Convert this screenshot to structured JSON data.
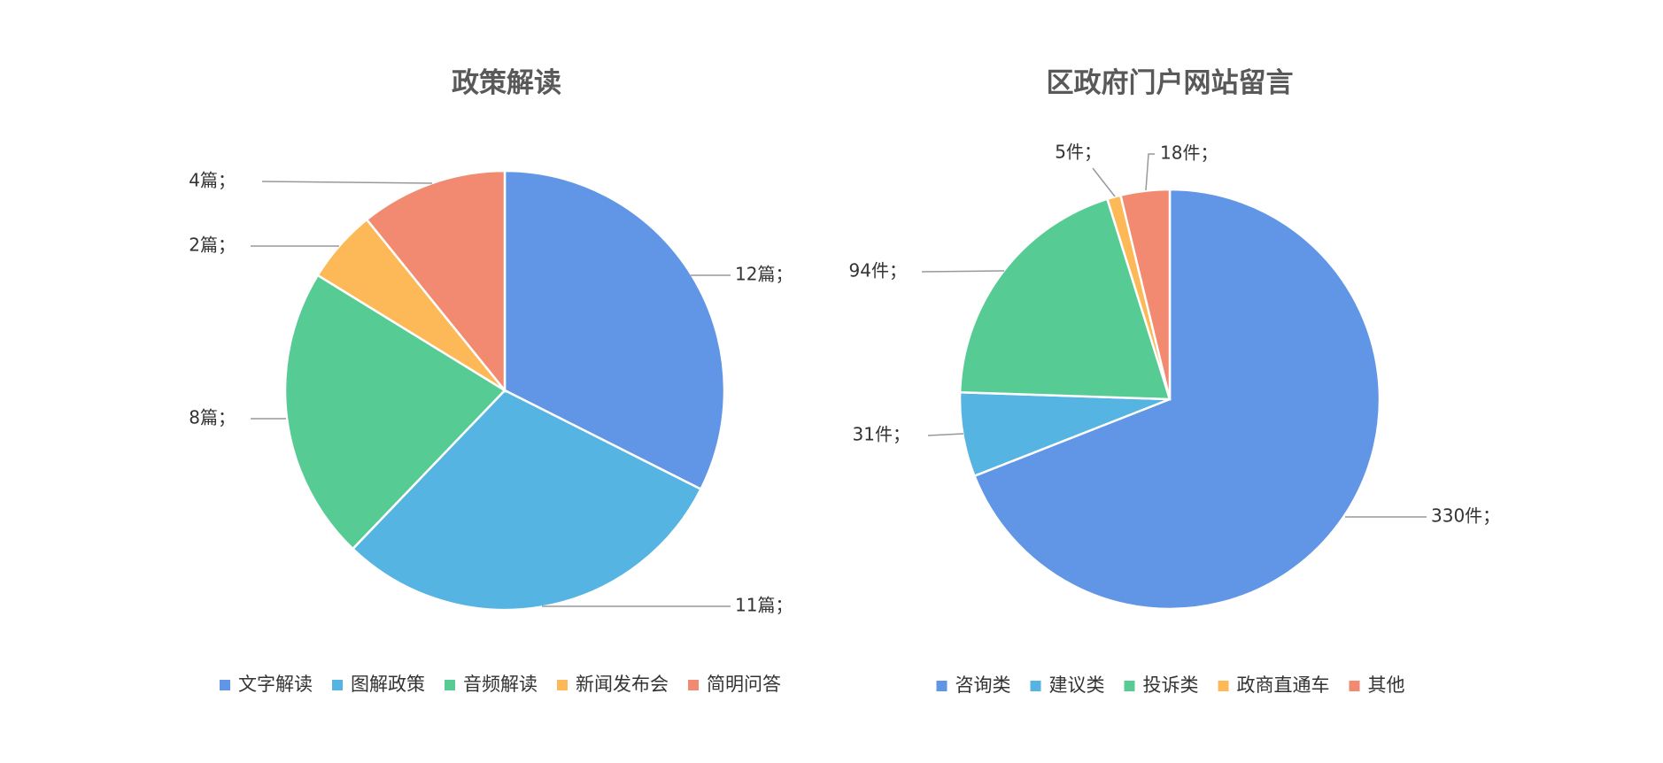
{
  "colors": {
    "blue": "#6196E6",
    "sky": "#56B4E3",
    "green": "#56CB93",
    "yellow": "#FDB857",
    "salmon": "#F28A71"
  },
  "chart_data": [
    {
      "type": "pie",
      "title": "政策解读",
      "categories": [
        "文字解读",
        "图解政策",
        "音频解读",
        "新闻发布会",
        "简明问答"
      ],
      "values": [
        12,
        11,
        8,
        2,
        4
      ],
      "data_labels": [
        "12篇；",
        "11篇；",
        "8篇；",
        "2篇；",
        "4篇；"
      ],
      "colors": [
        "#6196E6",
        "#56B4E3",
        "#56CB93",
        "#FDB857",
        "#F28A71"
      ],
      "legend_position": "bottom"
    },
    {
      "type": "pie",
      "title": "区政府门户网站留言",
      "categories": [
        "咨询类",
        "建议类",
        "投诉类",
        "政商直通车",
        "其他"
      ],
      "values": [
        330,
        31,
        94,
        5,
        18
      ],
      "data_labels": [
        "330件；",
        "31件；",
        "94件；",
        "5件；",
        "18件；"
      ],
      "colors": [
        "#6196E6",
        "#56B4E3",
        "#56CB93",
        "#FDB857",
        "#F28A71"
      ],
      "legend_position": "bottom"
    }
  ]
}
